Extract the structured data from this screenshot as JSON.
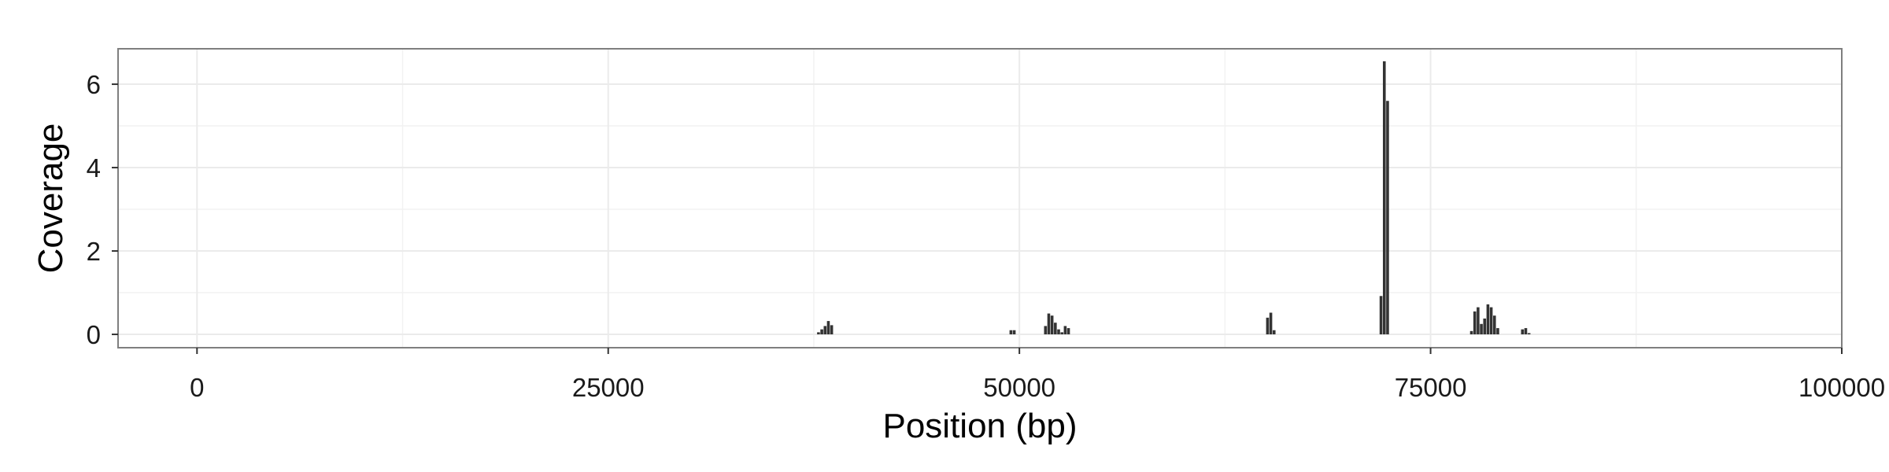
{
  "chart_data": {
    "type": "bar",
    "xlabel": "Position (bp)",
    "ylabel": "Coverage",
    "xlim": [
      -4800,
      100000
    ],
    "ylim": [
      -0.32,
      6.85
    ],
    "x_ticks": [
      0,
      25000,
      50000,
      75000,
      100000
    ],
    "x_tick_labels": [
      "0",
      "25000",
      "50000",
      "75000",
      "100000"
    ],
    "y_ticks": [
      0,
      2,
      4,
      6
    ],
    "y_tick_labels": [
      "0",
      "2",
      "4",
      "6"
    ],
    "bin_width": 200,
    "grid": true,
    "bar_color": "#333333",
    "panel_border_color": "#7f7f7f",
    "grid_color": "#ebebeb",
    "bars": [
      {
        "x": 37800,
        "y": 0.05
      },
      {
        "x": 38000,
        "y": 0.12
      },
      {
        "x": 38200,
        "y": 0.2
      },
      {
        "x": 38400,
        "y": 0.32
      },
      {
        "x": 38600,
        "y": 0.22
      },
      {
        "x": 49500,
        "y": 0.1
      },
      {
        "x": 49700,
        "y": 0.1
      },
      {
        "x": 51600,
        "y": 0.2
      },
      {
        "x": 51800,
        "y": 0.5
      },
      {
        "x": 52000,
        "y": 0.45
      },
      {
        "x": 52200,
        "y": 0.28
      },
      {
        "x": 52400,
        "y": 0.12
      },
      {
        "x": 52600,
        "y": 0.05
      },
      {
        "x": 52800,
        "y": 0.2
      },
      {
        "x": 53000,
        "y": 0.15
      },
      {
        "x": 65100,
        "y": 0.4
      },
      {
        "x": 65300,
        "y": 0.52
      },
      {
        "x": 65500,
        "y": 0.1
      },
      {
        "x": 72000,
        "y": 0.92
      },
      {
        "x": 72200,
        "y": 6.55
      },
      {
        "x": 72400,
        "y": 5.6
      },
      {
        "x": 77500,
        "y": 0.08
      },
      {
        "x": 77700,
        "y": 0.55
      },
      {
        "x": 77900,
        "y": 0.65
      },
      {
        "x": 78100,
        "y": 0.25
      },
      {
        "x": 78300,
        "y": 0.38
      },
      {
        "x": 78500,
        "y": 0.72
      },
      {
        "x": 78700,
        "y": 0.65
      },
      {
        "x": 78900,
        "y": 0.45
      },
      {
        "x": 79100,
        "y": 0.15
      },
      {
        "x": 80600,
        "y": 0.12
      },
      {
        "x": 80800,
        "y": 0.15
      },
      {
        "x": 81000,
        "y": 0.03
      }
    ]
  }
}
